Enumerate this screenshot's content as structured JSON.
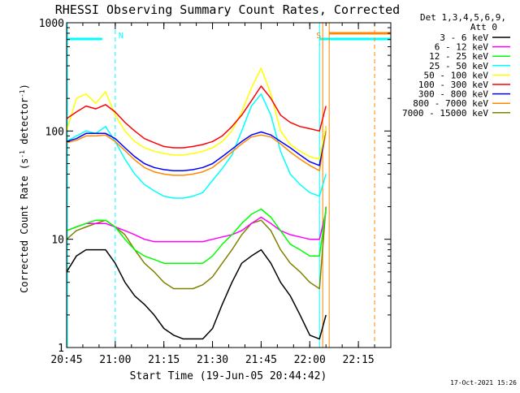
{
  "chart_data": {
    "type": "line",
    "title": "RHESSI Observing Summary Count Rates, Corrected",
    "xlabel": "Start Time (19-Jun-05 20:44:42)",
    "ylabel_main": "Corrected Count Rate (s",
    "ylabel_sup1": "-1",
    "ylabel_mid": " detector",
    "ylabel_sup2": "-1",
    "ylabel_end": ")",
    "yscale": "log",
    "ylim": [
      1,
      1000
    ],
    "xlim": [
      "20:45",
      "22:25"
    ],
    "x_ticks": [
      "20:45",
      "21:00",
      "21:15",
      "21:30",
      "21:45",
      "22:00",
      "22:15"
    ],
    "y_ticks": [
      "1",
      "10",
      "100",
      "1000"
    ],
    "legend": {
      "placement": "right",
      "header1": "Det 1,3,4,5,6,9,",
      "header2": "Att 0"
    },
    "x": [
      "20:45",
      "20:48",
      "20:51",
      "20:54",
      "20:57",
      "21:00",
      "21:03",
      "21:06",
      "21:09",
      "21:12",
      "21:15",
      "21:18",
      "21:21",
      "21:24",
      "21:27",
      "21:30",
      "21:33",
      "21:36",
      "21:39",
      "21:42",
      "21:45",
      "21:48",
      "21:51",
      "21:54",
      "21:57",
      "22:00",
      "22:03",
      "22:05"
    ],
    "series": [
      {
        "name": "3 - 6 keV",
        "color": "#000000",
        "values": [
          5,
          7,
          8,
          8,
          8,
          6,
          4,
          3,
          2.5,
          2,
          1.5,
          1.3,
          1.2,
          1.2,
          1.2,
          1.5,
          2.5,
          4,
          6,
          7,
          8,
          6,
          4,
          3,
          2,
          1.3,
          1.2,
          2
        ]
      },
      {
        "name": "6 - 12 keV",
        "color": "#ff00ff",
        "values": [
          12,
          13,
          14,
          14,
          14,
          13,
          12,
          11,
          10,
          9.5,
          9.5,
          9.5,
          9.5,
          9.5,
          9.5,
          10,
          10.5,
          11,
          12,
          14,
          16,
          14,
          12,
          11,
          10.5,
          10,
          10,
          18
        ]
      },
      {
        "name": "12 - 25 keV",
        "color": "#00ff00",
        "values": [
          12,
          13,
          14,
          15,
          15,
          13,
          10,
          8,
          7,
          6.5,
          6,
          6,
          6,
          6,
          6,
          7,
          9,
          11,
          14,
          17,
          19,
          16,
          12,
          9,
          8,
          7,
          7,
          19
        ]
      },
      {
        "name": "25 - 50 keV",
        "color": "#00ffff",
        "values": [
          80,
          90,
          100,
          95,
          110,
          80,
          55,
          40,
          32,
          28,
          25,
          24,
          24,
          25,
          27,
          35,
          45,
          60,
          100,
          170,
          220,
          140,
          65,
          40,
          32,
          27,
          25,
          40
        ]
      },
      {
        "name": "50 - 100 keV",
        "color": "#ffff00",
        "values": [
          100,
          200,
          220,
          180,
          230,
          140,
          100,
          80,
          70,
          65,
          62,
          60,
          60,
          62,
          65,
          70,
          80,
          100,
          150,
          250,
          380,
          220,
          100,
          75,
          65,
          58,
          55,
          110
        ]
      },
      {
        "name": "100 - 300 keV",
        "color": "#ff0000",
        "values": [
          130,
          150,
          170,
          160,
          175,
          150,
          120,
          100,
          85,
          78,
          72,
          70,
          70,
          72,
          75,
          80,
          90,
          110,
          140,
          190,
          260,
          200,
          140,
          120,
          110,
          105,
          100,
          170
        ]
      },
      {
        "name": "300 - 800 keV",
        "color": "#0000ff",
        "values": [
          80,
          85,
          95,
          95,
          95,
          85,
          70,
          58,
          50,
          46,
          44,
          43,
          43,
          44,
          46,
          50,
          58,
          68,
          80,
          92,
          98,
          92,
          80,
          70,
          60,
          52,
          48,
          110
        ]
      },
      {
        "name": "800 - 7000 keV",
        "color": "#ff8800",
        "values": [
          78,
          82,
          90,
          90,
          92,
          80,
          66,
          54,
          46,
          42,
          40,
          39,
          39,
          40,
          42,
          46,
          54,
          64,
          76,
          88,
          92,
          88,
          76,
          64,
          55,
          48,
          43,
          100
        ]
      },
      {
        "name": "7000 - 15000 keV",
        "color": "#808000",
        "values": [
          10,
          12,
          13,
          14,
          15,
          13,
          11,
          8,
          6,
          5,
          4,
          3.5,
          3.5,
          3.5,
          3.8,
          4.5,
          6,
          8,
          11,
          14,
          15,
          12,
          8,
          6,
          5,
          4,
          3.5,
          20
        ]
      }
    ],
    "annotations": [
      {
        "label": "N",
        "color": "#00ffff"
      },
      {
        "label": "S",
        "color": "#ff8800"
      }
    ]
  },
  "footer": {
    "timestamp": "17-Oct-2021 15:26"
  }
}
